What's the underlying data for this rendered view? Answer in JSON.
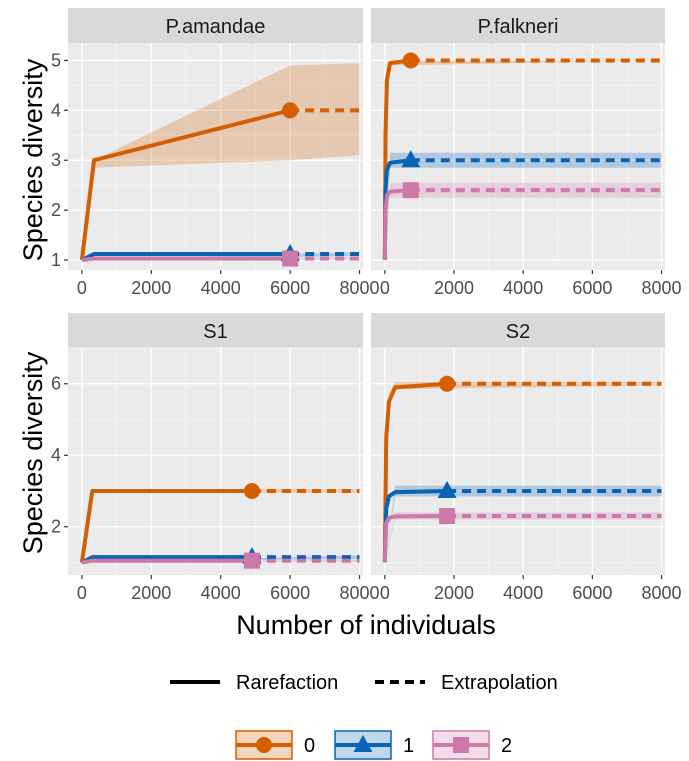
{
  "chart_data": {
    "type": "line",
    "title": "",
    "xlabel": "Number of individuals",
    "ylabel": "Species diversity",
    "grid": true,
    "colors": {
      "0": "#D55E00",
      "1": "#0864B5",
      "2": "#CC79A7"
    },
    "linetype_legend": {
      "placement": "bottom",
      "items": [
        {
          "label": "Rarefaction",
          "style": "solid"
        },
        {
          "label": "Extrapolation",
          "style": "dashed"
        }
      ]
    },
    "order_legend": {
      "placement": "bottom",
      "items": [
        {
          "label": "0",
          "shape": "circle"
        },
        {
          "label": "1",
          "shape": "triangle"
        },
        {
          "label": "2",
          "shape": "square"
        }
      ]
    },
    "rows": [
      {
        "ylim": [
          0.8,
          5.35
        ],
        "yticks": [
          1,
          2,
          3,
          4,
          5
        ]
      },
      {
        "ylim": [
          0.65,
          7.0
        ],
        "yticks": [
          2,
          4,
          6
        ]
      }
    ],
    "xlim": [
      -400,
      8100
    ],
    "xticks": [
      0,
      2000,
      4000,
      6000,
      8000
    ],
    "xtick_labels": [
      "0",
      "2000",
      "4000",
      "6000",
      "8000"
    ],
    "panels": [
      {
        "name": "P.amandae",
        "row": 0,
        "col": 0,
        "n": 6000,
        "series": [
          {
            "order": "0",
            "observed": 4.0,
            "rarefaction": [
              [
                0,
                1.0
              ],
              [
                350,
                3.0
              ],
              [
                6000,
                4.0
              ]
            ],
            "extrapolation": [
              [
                6000,
                4.0
              ],
              [
                8000,
                4.0
              ]
            ],
            "ci_lower": [
              [
                0,
                1.0
              ],
              [
                350,
                2.85
              ],
              [
                6000,
                3.0
              ],
              [
                8000,
                3.1
              ]
            ],
            "ci_upper": [
              [
                0,
                1.0
              ],
              [
                350,
                3.0
              ],
              [
                6000,
                4.9
              ],
              [
                8000,
                4.95
              ]
            ]
          },
          {
            "order": "1",
            "observed": 1.12,
            "rarefaction": [
              [
                0,
                1.0
              ],
              [
                350,
                1.12
              ],
              [
                6000,
                1.12
              ]
            ],
            "extrapolation": [
              [
                6000,
                1.12
              ],
              [
                8000,
                1.12
              ]
            ],
            "ci_lower": [
              [
                0,
                1.0
              ],
              [
                8000,
                1.08
              ]
            ],
            "ci_upper": [
              [
                0,
                1.0
              ],
              [
                8000,
                1.16
              ]
            ]
          },
          {
            "order": "2",
            "observed": 1.03,
            "rarefaction": [
              [
                0,
                1.0
              ],
              [
                350,
                1.03
              ],
              [
                6000,
                1.03
              ]
            ],
            "extrapolation": [
              [
                6000,
                1.03
              ],
              [
                8000,
                1.03
              ]
            ],
            "ci_lower": [
              [
                0,
                1.0
              ],
              [
                8000,
                1.0
              ]
            ],
            "ci_upper": [
              [
                0,
                1.0
              ],
              [
                8000,
                1.06
              ]
            ]
          }
        ]
      },
      {
        "name": "P.falkneri",
        "row": 0,
        "col": 1,
        "n": 750,
        "series": [
          {
            "order": "0",
            "observed": 5.0,
            "rarefaction": [
              [
                0,
                1.0
              ],
              [
                20,
                3.5
              ],
              [
                60,
                4.6
              ],
              [
                150,
                4.95
              ],
              [
                750,
                5.0
              ]
            ],
            "extrapolation": [
              [
                750,
                5.0
              ],
              [
                8000,
                5.0
              ]
            ],
            "ci_lower": [
              [
                0,
                1.0
              ],
              [
                60,
                4.5
              ],
              [
                150,
                4.9
              ],
              [
                8000,
                5.0
              ]
            ],
            "ci_upper": [
              [
                0,
                1.0
              ],
              [
                60,
                4.7
              ],
              [
                150,
                5.0
              ],
              [
                8000,
                5.0
              ]
            ]
          },
          {
            "order": "1",
            "observed": 3.0,
            "rarefaction": [
              [
                0,
                1.0
              ],
              [
                20,
                2.4
              ],
              [
                60,
                2.8
              ],
              [
                150,
                2.95
              ],
              [
                750,
                3.0
              ]
            ],
            "extrapolation": [
              [
                750,
                3.0
              ],
              [
                8000,
                3.0
              ]
            ],
            "ci_lower": [
              [
                0,
                1.0
              ],
              [
                150,
                2.85
              ],
              [
                8000,
                2.85
              ]
            ],
            "ci_upper": [
              [
                0,
                1.0
              ],
              [
                150,
                3.15
              ],
              [
                8000,
                3.15
              ]
            ]
          },
          {
            "order": "2",
            "observed": 2.4,
            "rarefaction": [
              [
                0,
                1.0
              ],
              [
                20,
                2.0
              ],
              [
                60,
                2.3
              ],
              [
                150,
                2.37
              ],
              [
                750,
                2.4
              ]
            ],
            "extrapolation": [
              [
                750,
                2.4
              ],
              [
                8000,
                2.4
              ]
            ],
            "ci_lower": [
              [
                0,
                1.0
              ],
              [
                150,
                2.25
              ],
              [
                8000,
                2.25
              ]
            ],
            "ci_upper": [
              [
                0,
                1.0
              ],
              [
                150,
                2.55
              ],
              [
                8000,
                2.55
              ]
            ]
          }
        ]
      },
      {
        "name": "S1",
        "row": 1,
        "col": 0,
        "n": 4900,
        "series": [
          {
            "order": "0",
            "observed": 3.0,
            "rarefaction": [
              [
                0,
                1.0
              ],
              [
                300,
                3.0
              ],
              [
                4900,
                3.0
              ]
            ],
            "extrapolation": [
              [
                4900,
                3.0
              ],
              [
                8000,
                3.0
              ]
            ],
            "ci_lower": [
              [
                0,
                1.0
              ],
              [
                300,
                2.95
              ],
              [
                8000,
                2.95
              ]
            ],
            "ci_upper": [
              [
                0,
                1.0
              ],
              [
                300,
                3.05
              ],
              [
                8000,
                3.05
              ]
            ]
          },
          {
            "order": "1",
            "observed": 1.15,
            "rarefaction": [
              [
                0,
                1.0
              ],
              [
                300,
                1.15
              ],
              [
                4900,
                1.15
              ]
            ],
            "extrapolation": [
              [
                4900,
                1.15
              ],
              [
                8000,
                1.15
              ]
            ],
            "ci_lower": [
              [
                0,
                1.0
              ],
              [
                8000,
                1.1
              ]
            ],
            "ci_upper": [
              [
                0,
                1.0
              ],
              [
                8000,
                1.2
              ]
            ]
          },
          {
            "order": "2",
            "observed": 1.05,
            "rarefaction": [
              [
                0,
                1.0
              ],
              [
                300,
                1.05
              ],
              [
                4900,
                1.05
              ]
            ],
            "extrapolation": [
              [
                4900,
                1.05
              ],
              [
                8000,
                1.05
              ]
            ],
            "ci_lower": [
              [
                0,
                1.0
              ],
              [
                8000,
                1.02
              ]
            ],
            "ci_upper": [
              [
                0,
                1.0
              ],
              [
                8000,
                1.08
              ]
            ]
          }
        ]
      },
      {
        "name": "S2",
        "row": 1,
        "col": 1,
        "n": 1800,
        "series": [
          {
            "order": "0",
            "observed": 6.0,
            "rarefaction": [
              [
                0,
                1.0
              ],
              [
                40,
                4.5
              ],
              [
                120,
                5.5
              ],
              [
                300,
                5.9
              ],
              [
                1800,
                6.0
              ]
            ],
            "extrapolation": [
              [
                1800,
                6.0
              ],
              [
                8000,
                6.0
              ]
            ],
            "ci_lower": [
              [
                0,
                1.0
              ],
              [
                120,
                5.35
              ],
              [
                300,
                5.85
              ],
              [
                8000,
                5.95
              ]
            ],
            "ci_upper": [
              [
                0,
                1.0
              ],
              [
                120,
                5.7
              ],
              [
                300,
                6.05
              ],
              [
                8000,
                6.05
              ]
            ]
          },
          {
            "order": "1",
            "observed": 3.0,
            "rarefaction": [
              [
                0,
                1.0
              ],
              [
                40,
                2.5
              ],
              [
                120,
                2.85
              ],
              [
                300,
                2.97
              ],
              [
                1800,
                3.0
              ]
            ],
            "extrapolation": [
              [
                1800,
                3.0
              ],
              [
                8000,
                3.0
              ]
            ],
            "ci_lower": [
              [
                0,
                1.0
              ],
              [
                300,
                2.85
              ],
              [
                8000,
                2.85
              ]
            ],
            "ci_upper": [
              [
                0,
                1.0
              ],
              [
                300,
                3.15
              ],
              [
                8000,
                3.15
              ]
            ]
          },
          {
            "order": "2",
            "observed": 2.3,
            "rarefaction": [
              [
                0,
                1.0
              ],
              [
                40,
                2.1
              ],
              [
                120,
                2.25
              ],
              [
                300,
                2.29
              ],
              [
                1800,
                2.3
              ]
            ],
            "extrapolation": [
              [
                1800,
                2.3
              ],
              [
                8000,
                2.3
              ]
            ],
            "ci_lower": [
              [
                0,
                1.0
              ],
              [
                300,
                2.2
              ],
              [
                8000,
                2.2
              ]
            ],
            "ci_upper": [
              [
                0,
                1.0
              ],
              [
                300,
                2.4
              ],
              [
                8000,
                2.4
              ]
            ]
          }
        ]
      }
    ]
  }
}
